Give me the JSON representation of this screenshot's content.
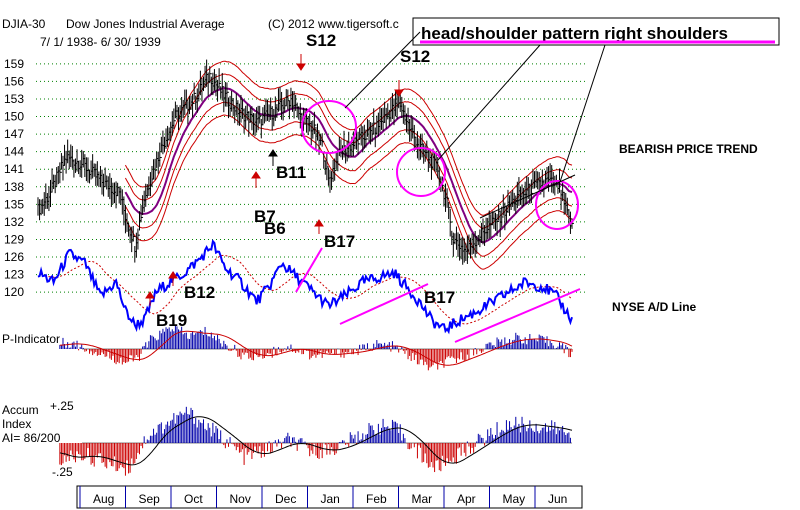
{
  "header": {
    "symbol": "DJIA-30",
    "name": "Dow Jones Industrial Average",
    "date_range": "7/ 1/ 1938- 6/ 30/ 1939",
    "copyright": "(C) 2012 www.tigersoft.c"
  },
  "callout": {
    "text": "head/shoulder pattern right shoulders",
    "underline_color": "#ff00ff"
  },
  "side_labels": {
    "trend": "BEARISH PRICE TREND",
    "ad_line": "NYSE A/D Line"
  },
  "panels": {
    "p_indicator": "P-Indicator",
    "accum_line1": "Accum",
    "accum_line2": "Index",
    "accum_ai": "AI= 86/200",
    "accum_top": "+.25",
    "accum_bottom": "-.25"
  },
  "signals": [
    {
      "id": "s12a",
      "text": "S12",
      "type": "sell"
    },
    {
      "id": "s12b",
      "text": "S12",
      "type": "sell"
    },
    {
      "id": "b11",
      "text": "B11",
      "type": "buy"
    },
    {
      "id": "b7",
      "text": "B7",
      "type": "buy"
    },
    {
      "id": "b6",
      "text": "B6",
      "type": "buy"
    },
    {
      "id": "b17a",
      "text": "B17",
      "type": "buy"
    },
    {
      "id": "b17b",
      "text": "B17",
      "type": "buy"
    },
    {
      "id": "b12",
      "text": "B12",
      "type": "buy"
    },
    {
      "id": "b19",
      "text": "B19",
      "type": "buy"
    }
  ],
  "colors": {
    "price": "#000000",
    "band": "#cc0000",
    "ma": "#800080",
    "ad": "#0000ff",
    "trend": "#ff00ff",
    "pos_hist": "#0000aa",
    "neg_hist": "#cc0000",
    "grid": "#008000"
  },
  "chart_data": {
    "type": "bar",
    "title": "DJIA-30 Dow Jones Industrial Average 7/1/1938 - 6/30/1939",
    "y_ticks": [
      159,
      156,
      153,
      150,
      147,
      144,
      141,
      138,
      135,
      132,
      129,
      126,
      123,
      120
    ],
    "y_tick_labels": [
      "159",
      "156",
      "153",
      "150",
      "147",
      "144",
      "141",
      "138",
      "135",
      "132",
      "129",
      "126",
      "123",
      "120"
    ],
    "ylim": [
      119,
      160
    ],
    "months": [
      "Aug",
      "Sep",
      "Oct",
      "Nov",
      "Dec",
      "Jan",
      "Feb",
      "Mar",
      "Apr",
      "May",
      "Jun"
    ],
    "price_anchors": [
      [
        0,
        134
      ],
      [
        8,
        137
      ],
      [
        18,
        143
      ],
      [
        28,
        142
      ],
      [
        40,
        139
      ],
      [
        52,
        137
      ],
      [
        56,
        133
      ],
      [
        62,
        128
      ],
      [
        68,
        136
      ],
      [
        78,
        144
      ],
      [
        88,
        150
      ],
      [
        100,
        153
      ],
      [
        110,
        157
      ],
      [
        118,
        154
      ],
      [
        128,
        151
      ],
      [
        140,
        149
      ],
      [
        152,
        151
      ],
      [
        162,
        153
      ],
      [
        168,
        150
      ],
      [
        176,
        148
      ],
      [
        182,
        145
      ],
      [
        186,
        139
      ],
      [
        194,
        144
      ],
      [
        206,
        146
      ],
      [
        216,
        148
      ],
      [
        226,
        151
      ],
      [
        232,
        152
      ],
      [
        238,
        148
      ],
      [
        244,
        145
      ],
      [
        250,
        143
      ],
      [
        256,
        141
      ],
      [
        262,
        135
      ],
      [
        266,
        129
      ],
      [
        274,
        127
      ],
      [
        284,
        130
      ],
      [
        296,
        133
      ],
      [
        306,
        136
      ],
      [
        318,
        138
      ],
      [
        326,
        139
      ],
      [
        334,
        138
      ],
      [
        338,
        134
      ],
      [
        342,
        131
      ]
    ],
    "ad_anchors": [
      [
        0,
        0.55
      ],
      [
        10,
        0.45
      ],
      [
        20,
        0.75
      ],
      [
        30,
        0.65
      ],
      [
        40,
        0.3
      ],
      [
        50,
        0.45
      ],
      [
        56,
        0.15
      ],
      [
        62,
        0.0
      ],
      [
        68,
        0.05
      ],
      [
        76,
        0.35
      ],
      [
        84,
        0.45
      ],
      [
        94,
        0.55
      ],
      [
        104,
        0.7
      ],
      [
        112,
        0.85
      ],
      [
        120,
        0.6
      ],
      [
        130,
        0.45
      ],
      [
        140,
        0.25
      ],
      [
        148,
        0.4
      ],
      [
        156,
        0.65
      ],
      [
        166,
        0.5
      ],
      [
        176,
        0.35
      ],
      [
        186,
        0.2
      ],
      [
        196,
        0.3
      ],
      [
        208,
        0.45
      ],
      [
        218,
        0.5
      ],
      [
        228,
        0.55
      ],
      [
        236,
        0.4
      ],
      [
        244,
        0.25
      ],
      [
        252,
        0.05
      ],
      [
        260,
        -0.05
      ],
      [
        270,
        0.05
      ],
      [
        282,
        0.15
      ],
      [
        292,
        0.25
      ],
      [
        302,
        0.35
      ],
      [
        312,
        0.45
      ],
      [
        324,
        0.4
      ],
      [
        332,
        0.3
      ],
      [
        338,
        0.15
      ],
      [
        342,
        0.05
      ]
    ],
    "p_indicator_anchors": [
      [
        0,
        0.1
      ],
      [
        20,
        0.3
      ],
      [
        40,
        -0.2
      ],
      [
        56,
        -0.6
      ],
      [
        64,
        -0.4
      ],
      [
        72,
        0.4
      ],
      [
        86,
        1.0
      ],
      [
        96,
        0.6
      ],
      [
        108,
        0.8
      ],
      [
        120,
        0.2
      ],
      [
        134,
        -0.4
      ],
      [
        148,
        -0.2
      ],
      [
        160,
        0.1
      ],
      [
        176,
        -0.3
      ],
      [
        190,
        -0.2
      ],
      [
        204,
        -0.1
      ],
      [
        216,
        0.2
      ],
      [
        228,
        0.1
      ],
      [
        240,
        -0.4
      ],
      [
        252,
        -0.9
      ],
      [
        262,
        -0.6
      ],
      [
        274,
        -0.3
      ],
      [
        290,
        0.2
      ],
      [
        306,
        0.5
      ],
      [
        322,
        0.4
      ],
      [
        334,
        0.2
      ],
      [
        342,
        -0.3
      ]
    ],
    "accum_anchors": [
      [
        0,
        -0.02
      ],
      [
        14,
        -0.12
      ],
      [
        28,
        -0.08
      ],
      [
        44,
        -0.14
      ],
      [
        58,
        -0.18
      ],
      [
        70,
        0.05
      ],
      [
        84,
        0.15
      ],
      [
        96,
        0.22
      ],
      [
        108,
        0.12
      ],
      [
        120,
        0.02
      ],
      [
        132,
        -0.1
      ],
      [
        146,
        -0.05
      ],
      [
        160,
        0.02
      ],
      [
        176,
        -0.06
      ],
      [
        190,
        -0.04
      ],
      [
        204,
        0.04
      ],
      [
        218,
        0.12
      ],
      [
        230,
        0.1
      ],
      [
        242,
        -0.05
      ],
      [
        254,
        -0.18
      ],
      [
        264,
        -0.12
      ],
      [
        278,
        -0.02
      ],
      [
        292,
        0.08
      ],
      [
        304,
        0.14
      ],
      [
        318,
        0.12
      ],
      [
        332,
        0.1
      ],
      [
        342,
        0.06
      ]
    ],
    "accum_range": [
      -0.25,
      0.25
    ]
  }
}
